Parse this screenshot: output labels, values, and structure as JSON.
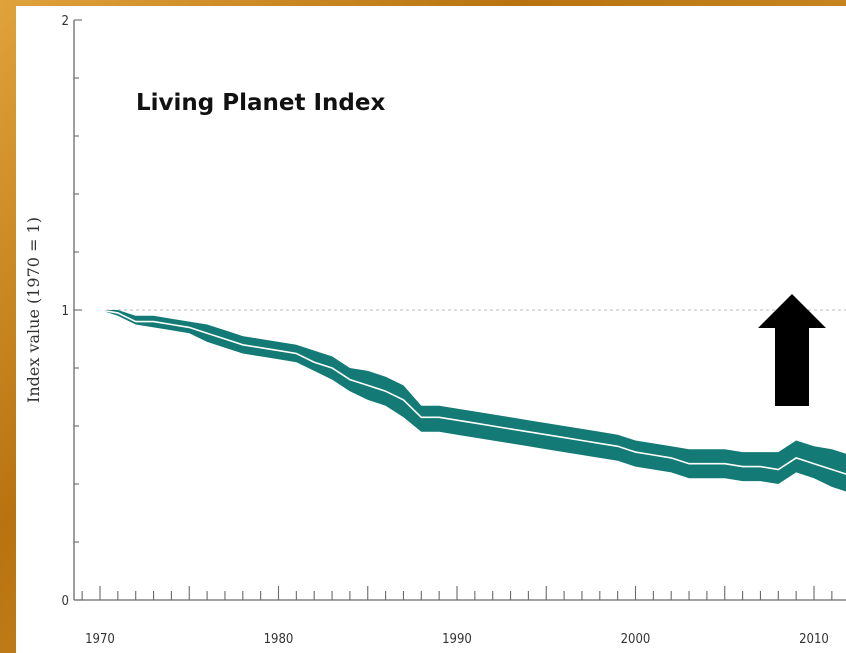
{
  "chart_data": {
    "type": "area",
    "title": "Living Planet Index",
    "ylabel": "Index value (1970 = 1)",
    "xlabel": "",
    "xlim": [
      1970,
      2012
    ],
    "ylim": [
      0,
      2
    ],
    "x_ticks": [
      "1970",
      "1980",
      "1990",
      "2000",
      "2010"
    ],
    "y_ticks": [
      "0",
      "1",
      "2"
    ],
    "reference_line": 1,
    "grid": false,
    "colors": {
      "band": "#137a75",
      "line": "#ffffff",
      "reference": "#bbbbbb",
      "arrow": "#000000"
    },
    "annotations": [
      {
        "type": "arrow",
        "direction": "up",
        "icon": "up-arrow-icon"
      }
    ],
    "series": [
      {
        "x": [
          1970,
          1971,
          1972,
          1973,
          1974,
          1975,
          1976,
          1977,
          1978,
          1979,
          1980,
          1981,
          1982,
          1983,
          1984,
          1985,
          1986,
          1987,
          1988,
          1989,
          1990,
          1991,
          1992,
          1993,
          1994,
          1995,
          1996,
          1997,
          1998,
          1999,
          2000,
          2001,
          2002,
          2003,
          2004,
          2005,
          2006,
          2007,
          2008,
          2009,
          2010,
          2011,
          2012
        ],
        "values": [
          1.0,
          0.99,
          0.96,
          0.96,
          0.95,
          0.94,
          0.92,
          0.9,
          0.88,
          0.87,
          0.86,
          0.85,
          0.82,
          0.8,
          0.76,
          0.74,
          0.72,
          0.69,
          0.63,
          0.63,
          0.62,
          0.61,
          0.6,
          0.59,
          0.58,
          0.57,
          0.56,
          0.55,
          0.54,
          0.53,
          0.51,
          0.5,
          0.49,
          0.47,
          0.47,
          0.47,
          0.46,
          0.46,
          0.45,
          0.49,
          0.47,
          0.45,
          0.43
        ],
        "upper": [
          1.0,
          1.0,
          0.98,
          0.98,
          0.97,
          0.96,
          0.95,
          0.93,
          0.91,
          0.9,
          0.89,
          0.88,
          0.86,
          0.84,
          0.8,
          0.79,
          0.77,
          0.74,
          0.67,
          0.67,
          0.66,
          0.65,
          0.64,
          0.63,
          0.62,
          0.61,
          0.6,
          0.59,
          0.58,
          0.57,
          0.55,
          0.54,
          0.53,
          0.52,
          0.52,
          0.52,
          0.51,
          0.51,
          0.51,
          0.55,
          0.53,
          0.52,
          0.5
        ],
        "lower": [
          1.0,
          0.98,
          0.95,
          0.94,
          0.93,
          0.92,
          0.89,
          0.87,
          0.85,
          0.84,
          0.83,
          0.82,
          0.79,
          0.76,
          0.72,
          0.69,
          0.67,
          0.63,
          0.58,
          0.58,
          0.57,
          0.56,
          0.55,
          0.54,
          0.53,
          0.52,
          0.51,
          0.5,
          0.49,
          0.48,
          0.46,
          0.45,
          0.44,
          0.42,
          0.42,
          0.42,
          0.41,
          0.41,
          0.4,
          0.44,
          0.42,
          0.39,
          0.37
        ]
      }
    ]
  }
}
